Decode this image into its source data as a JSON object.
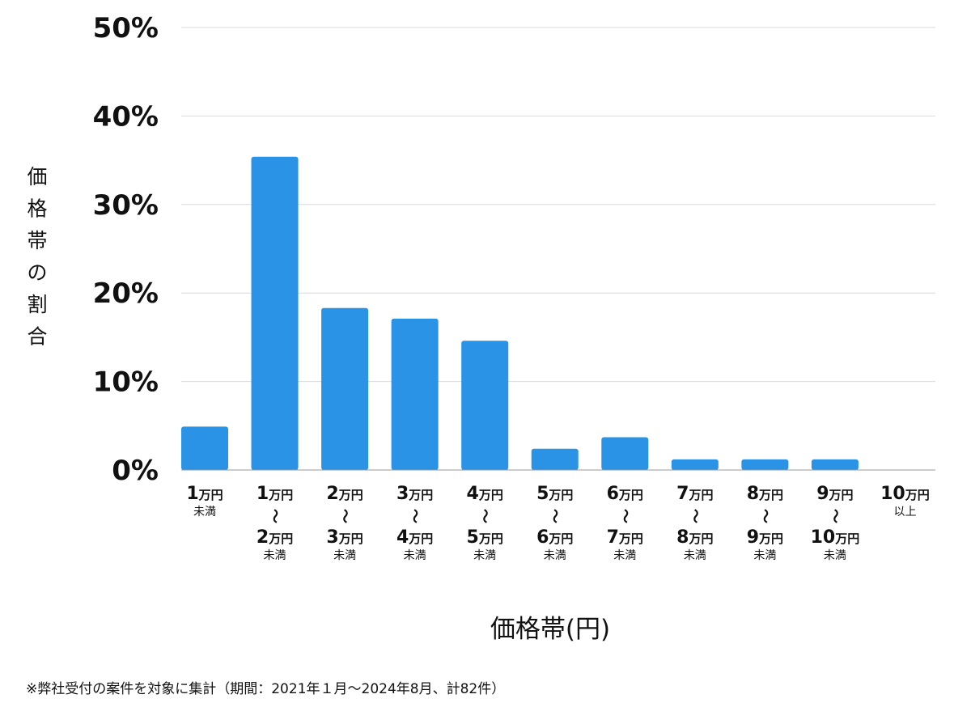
{
  "chart_data": {
    "type": "bar",
    "categories": [
      {
        "top": "1",
        "top_unit": "万円",
        "bottom": "",
        "bottom_unit": "",
        "suffix": "未満"
      },
      {
        "top": "1",
        "top_unit": "万円",
        "bottom": "2",
        "bottom_unit": "万円",
        "suffix": "未満"
      },
      {
        "top": "2",
        "top_unit": "万円",
        "bottom": "3",
        "bottom_unit": "万円",
        "suffix": "未満"
      },
      {
        "top": "3",
        "top_unit": "万円",
        "bottom": "4",
        "bottom_unit": "万円",
        "suffix": "未満"
      },
      {
        "top": "4",
        "top_unit": "万円",
        "bottom": "5",
        "bottom_unit": "万円",
        "suffix": "未満"
      },
      {
        "top": "5",
        "top_unit": "万円",
        "bottom": "6",
        "bottom_unit": "万円",
        "suffix": "未満"
      },
      {
        "top": "6",
        "top_unit": "万円",
        "bottom": "7",
        "bottom_unit": "万円",
        "suffix": "未満"
      },
      {
        "top": "7",
        "top_unit": "万円",
        "bottom": "8",
        "bottom_unit": "万円",
        "suffix": "未満"
      },
      {
        "top": "8",
        "top_unit": "万円",
        "bottom": "9",
        "bottom_unit": "万円",
        "suffix": "未満"
      },
      {
        "top": "9",
        "top_unit": "万円",
        "bottom": "10",
        "bottom_unit": "万円",
        "suffix": "未満"
      },
      {
        "top": "10",
        "top_unit": "万円",
        "bottom": "",
        "bottom_unit": "",
        "suffix": "以上"
      }
    ],
    "range_separator": "〜",
    "values": [
      4.9,
      35.4,
      18.3,
      17.1,
      14.6,
      2.4,
      3.7,
      1.2,
      1.2,
      1.2,
      0
    ],
    "yticks": [
      "0%",
      "10%",
      "20%",
      "30%",
      "40%",
      "50%"
    ],
    "ylim": [
      0,
      50
    ],
    "ylabel": "価格帯の割合",
    "xlabel": "価格帯(円)",
    "grid": true,
    "bar_color": "#2a93e6",
    "grid_color": "#d9d9d9",
    "axis_color": "#9a9a9a"
  },
  "footnote": "※弊社受付の案件を対象に集計（期間：2021年１月～2024年8月、計82件）"
}
